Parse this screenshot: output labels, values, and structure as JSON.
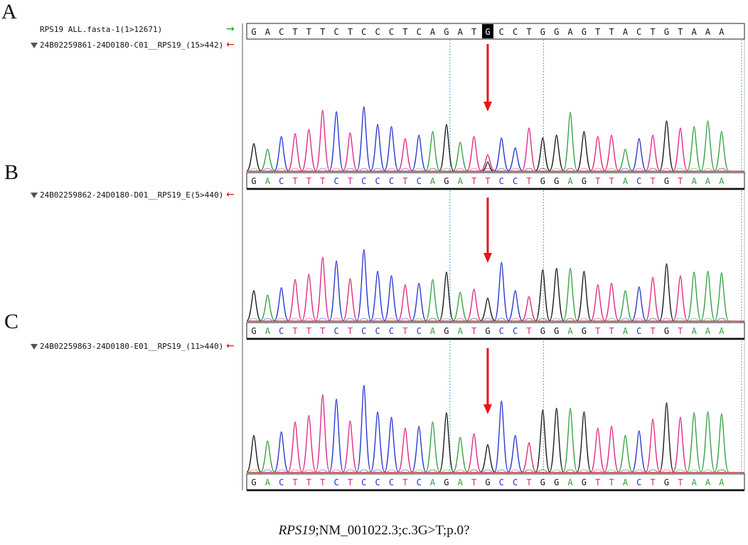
{
  "panels": [
    {
      "letter": "A",
      "label": "24B02259861-24D0180-C01__RPS19_(15>442)",
      "sequence": [
        "G",
        "A",
        "C",
        "T",
        "T",
        "T",
        "C",
        "T",
        "C",
        "C",
        "C",
        "T",
        "C",
        "A",
        "G",
        "A",
        "T",
        "T",
        "C",
        "C",
        "T",
        "G",
        "G",
        "A",
        "G",
        "T",
        "T",
        "A",
        "C",
        "T",
        "G",
        "T",
        "A",
        "A",
        "A"
      ],
      "mutant": true
    },
    {
      "letter": "B",
      "label": "24B02259862-24D0180-D01__RPS19_E(5>440)",
      "sequence": [
        "G",
        "A",
        "C",
        "T",
        "T",
        "T",
        "C",
        "T",
        "C",
        "C",
        "C",
        "T",
        "C",
        "A",
        "G",
        "A",
        "T",
        "G",
        "C",
        "C",
        "T",
        "G",
        "G",
        "A",
        "G",
        "T",
        "T",
        "A",
        "C",
        "T",
        "G",
        "T",
        "A",
        "A",
        "A"
      ],
      "mutant": false
    },
    {
      "letter": "C",
      "label": "24B02259863-24D0180-E01__RPS19_(11>440)",
      "sequence": [
        "G",
        "A",
        "C",
        "T",
        "T",
        "T",
        "C",
        "T",
        "C",
        "C",
        "C",
        "T",
        "C",
        "A",
        "G",
        "A",
        "T",
        "G",
        "C",
        "C",
        "T",
        "G",
        "G",
        "A",
        "G",
        "T",
        "T",
        "A",
        "C",
        "T",
        "G",
        "T",
        "A",
        "A",
        "A"
      ],
      "mutant": false
    }
  ],
  "reference": {
    "label": "RPS19 ALL.fasta-1(1>12671)",
    "sequence": [
      "G",
      "A",
      "C",
      "T",
      "T",
      "T",
      "C",
      "T",
      "C",
      "C",
      "C",
      "T",
      "C",
      "A",
      "G",
      "A",
      "T",
      "G",
      "C",
      "C",
      "T",
      "G",
      "G",
      "A",
      "G",
      "T",
      "T",
      "A",
      "C",
      "T",
      "G",
      "T",
      "A",
      "A",
      "A"
    ],
    "highlight_index": 17
  },
  "arrows": {
    "forward": "→",
    "reverse": "←"
  },
  "colors": {
    "A": "#2e9e3e",
    "C": "#1f2fd0",
    "G": "#111111",
    "T": "#e0207e",
    "marker_arrow": "#e8141a",
    "guide_line": "#37a8d8"
  },
  "caption": {
    "gene": "RPS19",
    "rest": ";NM_001022.3;c.3G>T;p.0?"
  }
}
